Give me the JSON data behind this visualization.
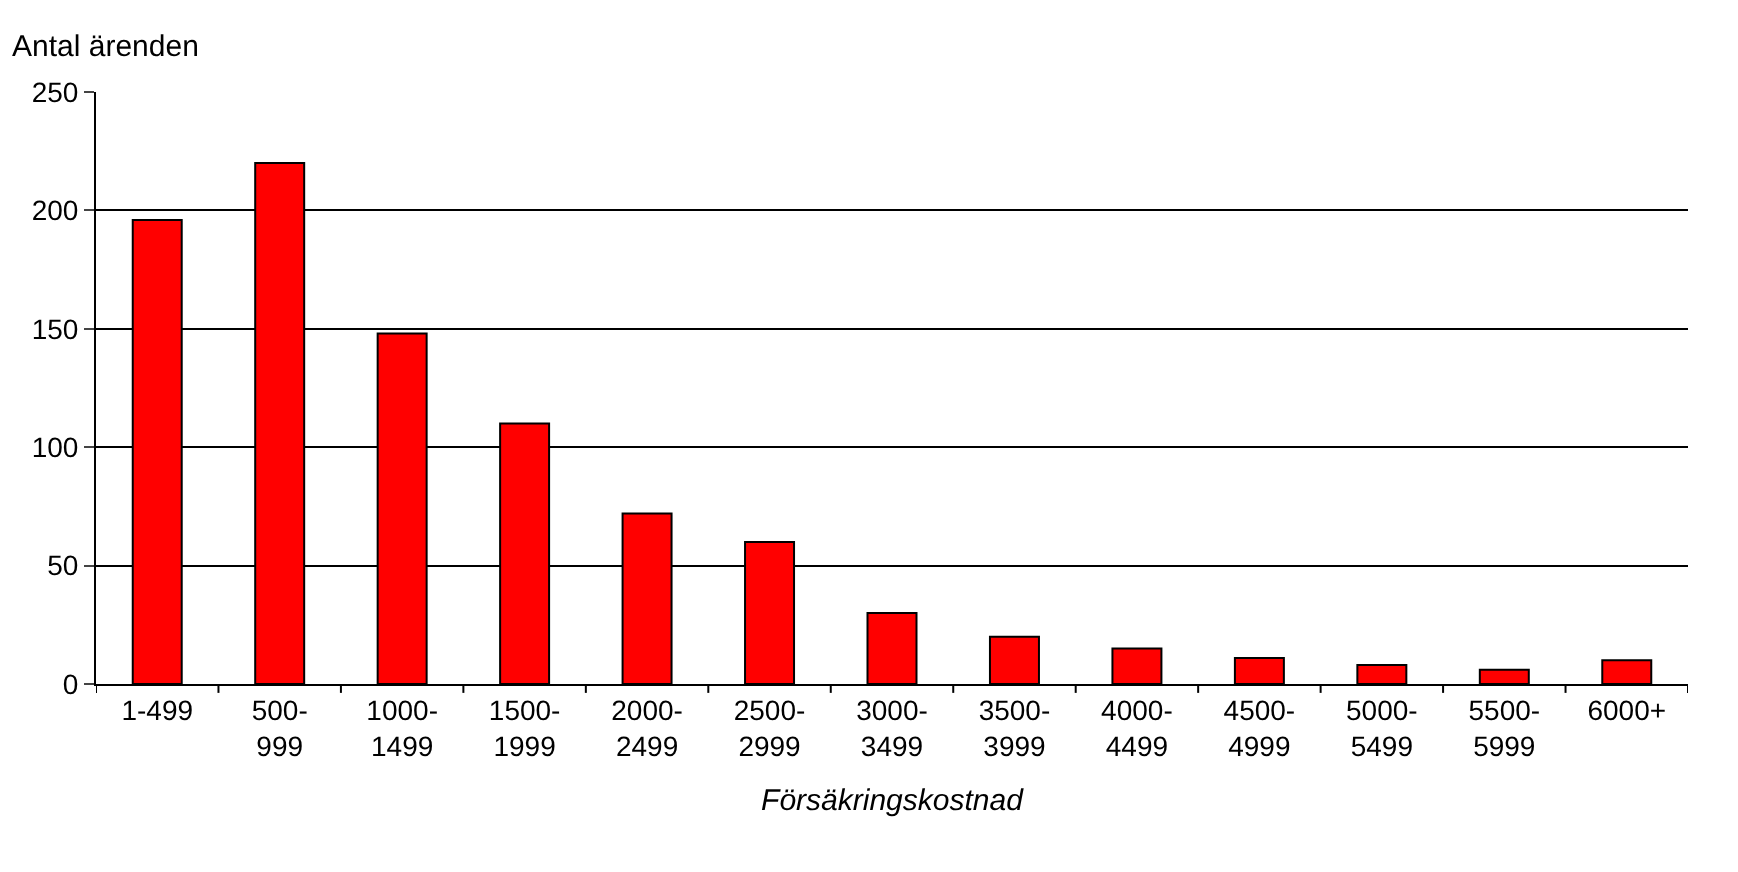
{
  "chart_data": {
    "type": "bar",
    "ylabel": "Antal ärenden",
    "xlabel": "Försäkringskostnad",
    "categories": [
      "1-499",
      "500-\n999",
      "1000-\n1499",
      "1500-\n1999",
      "2000-\n2499",
      "2500-\n2999",
      "3000-\n3499",
      "3500-\n3999",
      "4000-\n4499",
      "4500-\n4999",
      "5000-\n5499",
      "5500-\n5999",
      "6000+"
    ],
    "values": [
      196,
      220,
      148,
      110,
      72,
      60,
      30,
      20,
      15,
      11,
      8,
      6,
      10
    ],
    "color": "#ff0000",
    "ylim": [
      0,
      250
    ],
    "yticks": [
      0,
      50,
      100,
      150,
      200,
      250
    ],
    "grid": "y",
    "legend": false
  }
}
